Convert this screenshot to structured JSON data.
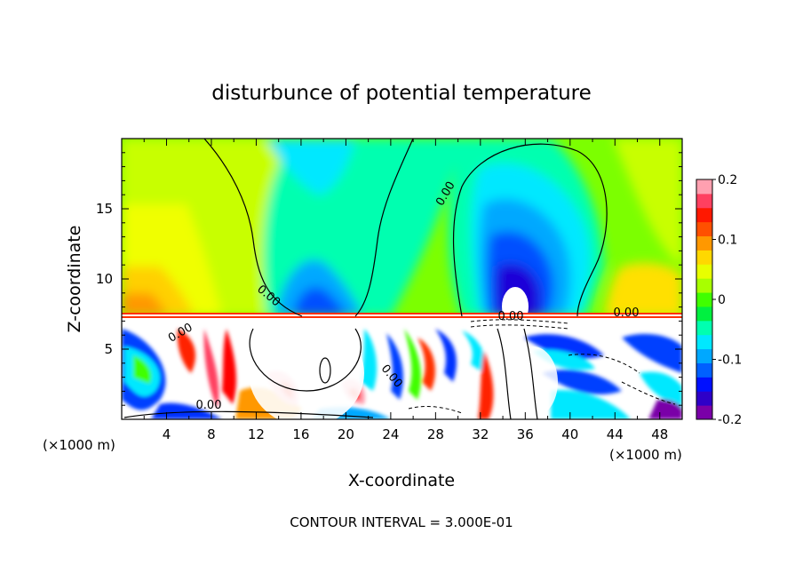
{
  "chart_data": {
    "type": "heatmap",
    "title": "disturbunce of potential temperature",
    "xlabel": "X-coordinate",
    "ylabel": "Z-coordinate",
    "x_unit_left": "(×1000 m)",
    "x_unit_right": "(×1000 m)",
    "xlim": [
      0,
      50
    ],
    "ylim": [
      0,
      20
    ],
    "x_ticks": [
      4,
      8,
      12,
      16,
      20,
      24,
      28,
      32,
      36,
      40,
      44,
      48
    ],
    "y_ticks": [
      5,
      10,
      15
    ],
    "colorbar": {
      "range": [
        -0.2,
        0.2
      ],
      "tick_labels": [
        "0.2",
        "0.1",
        "0",
        "-0.1",
        "-0.2"
      ],
      "tick_values": [
        0.2,
        0.1,
        0,
        -0.1,
        -0.2
      ],
      "colors": [
        "#7a00a8",
        "#2e00c8",
        "#0010ff",
        "#0060ff",
        "#00a8ff",
        "#00e8ff",
        "#00ffb0",
        "#00f040",
        "#40ff00",
        "#a8ff00",
        "#e8ff00",
        "#ffd800",
        "#ff9800",
        "#ff5000",
        "#ff1800",
        "#ff4060",
        "#ffa0b0"
      ]
    },
    "contour_labels": [
      "0.00",
      "0.00",
      "0.00",
      "0.00",
      "0.00",
      "0.00",
      "0.00"
    ],
    "annotation": "CONTOUR INTERVAL = 3.000E-01"
  }
}
